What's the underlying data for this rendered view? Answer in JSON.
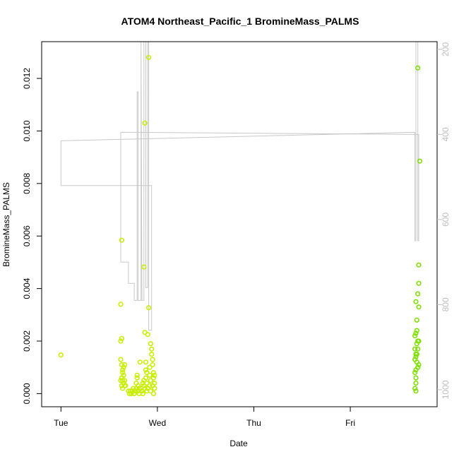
{
  "chart_data": {
    "type": "scatter",
    "title": "ATOM4 Northeast_Pacific_1 BromineMass_PALMS",
    "xlabel": "Date",
    "ylabel": "BromineMass_PALMS",
    "x_unit": "days since Tue 00:00",
    "xlim": [
      -0.2,
      3.9
    ],
    "ylim": [
      -0.0005,
      0.0134
    ],
    "x_ticks": [
      {
        "value": 0,
        "label": "Tue"
      },
      {
        "value": 1,
        "label": "Wed"
      },
      {
        "value": 2,
        "label": "Thu"
      },
      {
        "value": 3,
        "label": "Fri"
      }
    ],
    "y_ticks": [
      {
        "value": 0.0,
        "label": "0.000"
      },
      {
        "value": 0.002,
        "label": "0.002"
      },
      {
        "value": 0.004,
        "label": "0.004"
      },
      {
        "value": 0.006,
        "label": "0.006"
      },
      {
        "value": 0.008,
        "label": "0.008"
      },
      {
        "value": 0.01,
        "label": "0.010"
      },
      {
        "value": 0.012,
        "label": "0.012"
      }
    ],
    "y2_ticks": [
      {
        "value": 200,
        "label": "200"
      },
      {
        "value": 400,
        "label": "400"
      },
      {
        "value": 600,
        "label": "600"
      },
      {
        "value": 800,
        "label": "800"
      },
      {
        "value": 1000,
        "label": "1000"
      }
    ],
    "y2lim": [
      1040,
      182
    ],
    "y2_color": "#bdbdbd",
    "grid": false,
    "legend": "none",
    "series": [
      {
        "color_early": "#c8ee00",
        "color_late": "#7ee000",
        "points": [
          [
            0.0,
            0.00147
          ],
          [
            0.63,
            0.00584
          ],
          [
            0.62,
            0.0034
          ],
          [
            0.62,
            0.002
          ],
          [
            0.63,
            0.0021
          ],
          [
            0.62,
            0.0013
          ],
          [
            0.63,
            0.0011
          ],
          [
            0.64,
            0.0009
          ],
          [
            0.64,
            0.0008
          ],
          [
            0.65,
            0.001
          ],
          [
            0.66,
            0.0011
          ],
          [
            0.62,
            0.0005
          ],
          [
            0.63,
            0.0006
          ],
          [
            0.64,
            0.0005
          ],
          [
            0.65,
            0.0004
          ],
          [
            0.66,
            0.0003
          ],
          [
            0.63,
            0.0003
          ],
          [
            0.64,
            0.0002
          ],
          [
            0.66,
            0.0005
          ],
          [
            0.67,
            0.0003
          ],
          [
            0.65,
            0.0007
          ],
          [
            0.7,
            0.0001
          ],
          [
            0.71,
            0.0
          ],
          [
            0.72,
            0.0001
          ],
          [
            0.73,
            0.0
          ],
          [
            0.74,
            0.0001
          ],
          [
            0.75,
            0.0002
          ],
          [
            0.76,
            0.0
          ],
          [
            0.77,
            0.0001
          ],
          [
            0.78,
            0.0004
          ],
          [
            0.79,
            0.0007
          ],
          [
            0.79,
            0.0006
          ],
          [
            0.8,
            0.0003
          ],
          [
            0.8,
            0.0001
          ],
          [
            0.81,
            0.0
          ],
          [
            0.82,
            0.0012
          ],
          [
            0.83,
            0.0002
          ],
          [
            0.84,
            0.0001
          ],
          [
            0.85,
            0.0
          ],
          [
            0.86,
            0.0003
          ],
          [
            0.86,
            0.0005
          ],
          [
            0.87,
            0.00233
          ],
          [
            0.86,
            0.00482
          ],
          [
            0.87,
            0.0103
          ],
          [
            0.88,
            0.0012
          ],
          [
            0.88,
            0.0009
          ],
          [
            0.88,
            0.0006
          ],
          [
            0.89,
            0.0004
          ],
          [
            0.89,
            0.0008
          ],
          [
            0.9,
            0.0002
          ],
          [
            0.9,
            0.00225
          ],
          [
            0.91,
            0.00327
          ],
          [
            0.91,
            0.0128
          ],
          [
            0.92,
            0.0007
          ],
          [
            0.92,
            0.0003
          ],
          [
            0.93,
            0.0001
          ],
          [
            0.93,
            0.0019
          ],
          [
            0.94,
            0.0017
          ],
          [
            0.94,
            0.0015
          ],
          [
            0.95,
            0.0013
          ],
          [
            0.95,
            0.0011
          ],
          [
            0.96,
            0.0008
          ],
          [
            0.96,
            0.0006
          ],
          [
            0.97,
            0.0004
          ],
          [
            0.97,
            0.0002
          ],
          [
            0.96,
            0.0
          ],
          [
            0.87,
            0.0002
          ],
          [
            0.85,
            0.0004
          ],
          [
            0.84,
            0.0001
          ],
          [
            0.81,
            0.0002
          ],
          [
            0.78,
            0.0002
          ],
          [
            0.92,
            0.001
          ],
          [
            0.95,
            0.0003
          ],
          [
            0.97,
            0.0007
          ],
          [
            0.93,
            0.0005
          ],
          [
            0.89,
            0.0001
          ],
          [
            3.7,
            0.0124
          ],
          [
            3.72,
            0.00885
          ],
          [
            3.71,
            0.0049
          ],
          [
            3.71,
            0.0042
          ],
          [
            3.7,
            0.0038
          ],
          [
            3.68,
            0.0035
          ],
          [
            3.71,
            0.0033
          ],
          [
            3.69,
            0.0028
          ],
          [
            3.69,
            0.0024
          ],
          [
            3.68,
            0.0023
          ],
          [
            3.67,
            0.0022
          ],
          [
            3.7,
            0.002
          ],
          [
            3.71,
            0.002
          ],
          [
            3.69,
            0.0019
          ],
          [
            3.7,
            0.0017
          ],
          [
            3.68,
            0.0015
          ],
          [
            3.68,
            0.0014
          ],
          [
            3.67,
            0.0013
          ],
          [
            3.69,
            0.0012
          ],
          [
            3.71,
            0.0011
          ],
          [
            3.7,
            0.001
          ],
          [
            3.68,
            0.0009
          ],
          [
            3.67,
            0.0008
          ],
          [
            3.68,
            0.0006
          ],
          [
            3.68,
            0.0004
          ],
          [
            3.67,
            0.0002
          ],
          [
            3.68,
            0.0001
          ],
          [
            3.7,
            0.001
          ],
          [
            3.67,
            0.0017
          ],
          [
            3.69,
            0.0015
          ]
        ]
      }
    ],
    "secondary_series": {
      "color": "#c8c8c8",
      "points": [
        [
          0.0,
          520
        ],
        [
          0.0,
          415
        ],
        [
          3.67,
          395
        ],
        [
          3.67,
          650
        ],
        [
          3.68,
          650
        ],
        [
          3.68,
          182
        ],
        [
          3.7,
          182
        ],
        [
          3.7,
          650
        ],
        [
          3.71,
          650
        ],
        [
          3.71,
          400
        ],
        [
          0.62,
          395
        ],
        [
          0.62,
          700
        ],
        [
          0.7,
          700
        ],
        [
          0.7,
          750
        ],
        [
          0.76,
          750
        ],
        [
          0.76,
          790
        ],
        [
          0.79,
          790
        ],
        [
          0.79,
          300
        ],
        [
          0.8,
          300
        ],
        [
          0.8,
          790
        ],
        [
          0.83,
          790
        ],
        [
          0.83,
          182
        ],
        [
          0.84,
          790
        ],
        [
          0.86,
          790
        ],
        [
          0.86,
          182
        ],
        [
          0.88,
          182
        ],
        [
          0.88,
          760
        ],
        [
          0.9,
          760
        ],
        [
          0.9,
          182
        ],
        [
          0.91,
          182
        ],
        [
          0.91,
          860
        ],
        [
          0.94,
          860
        ],
        [
          0.94,
          520
        ],
        [
          0.0,
          520
        ]
      ]
    }
  }
}
